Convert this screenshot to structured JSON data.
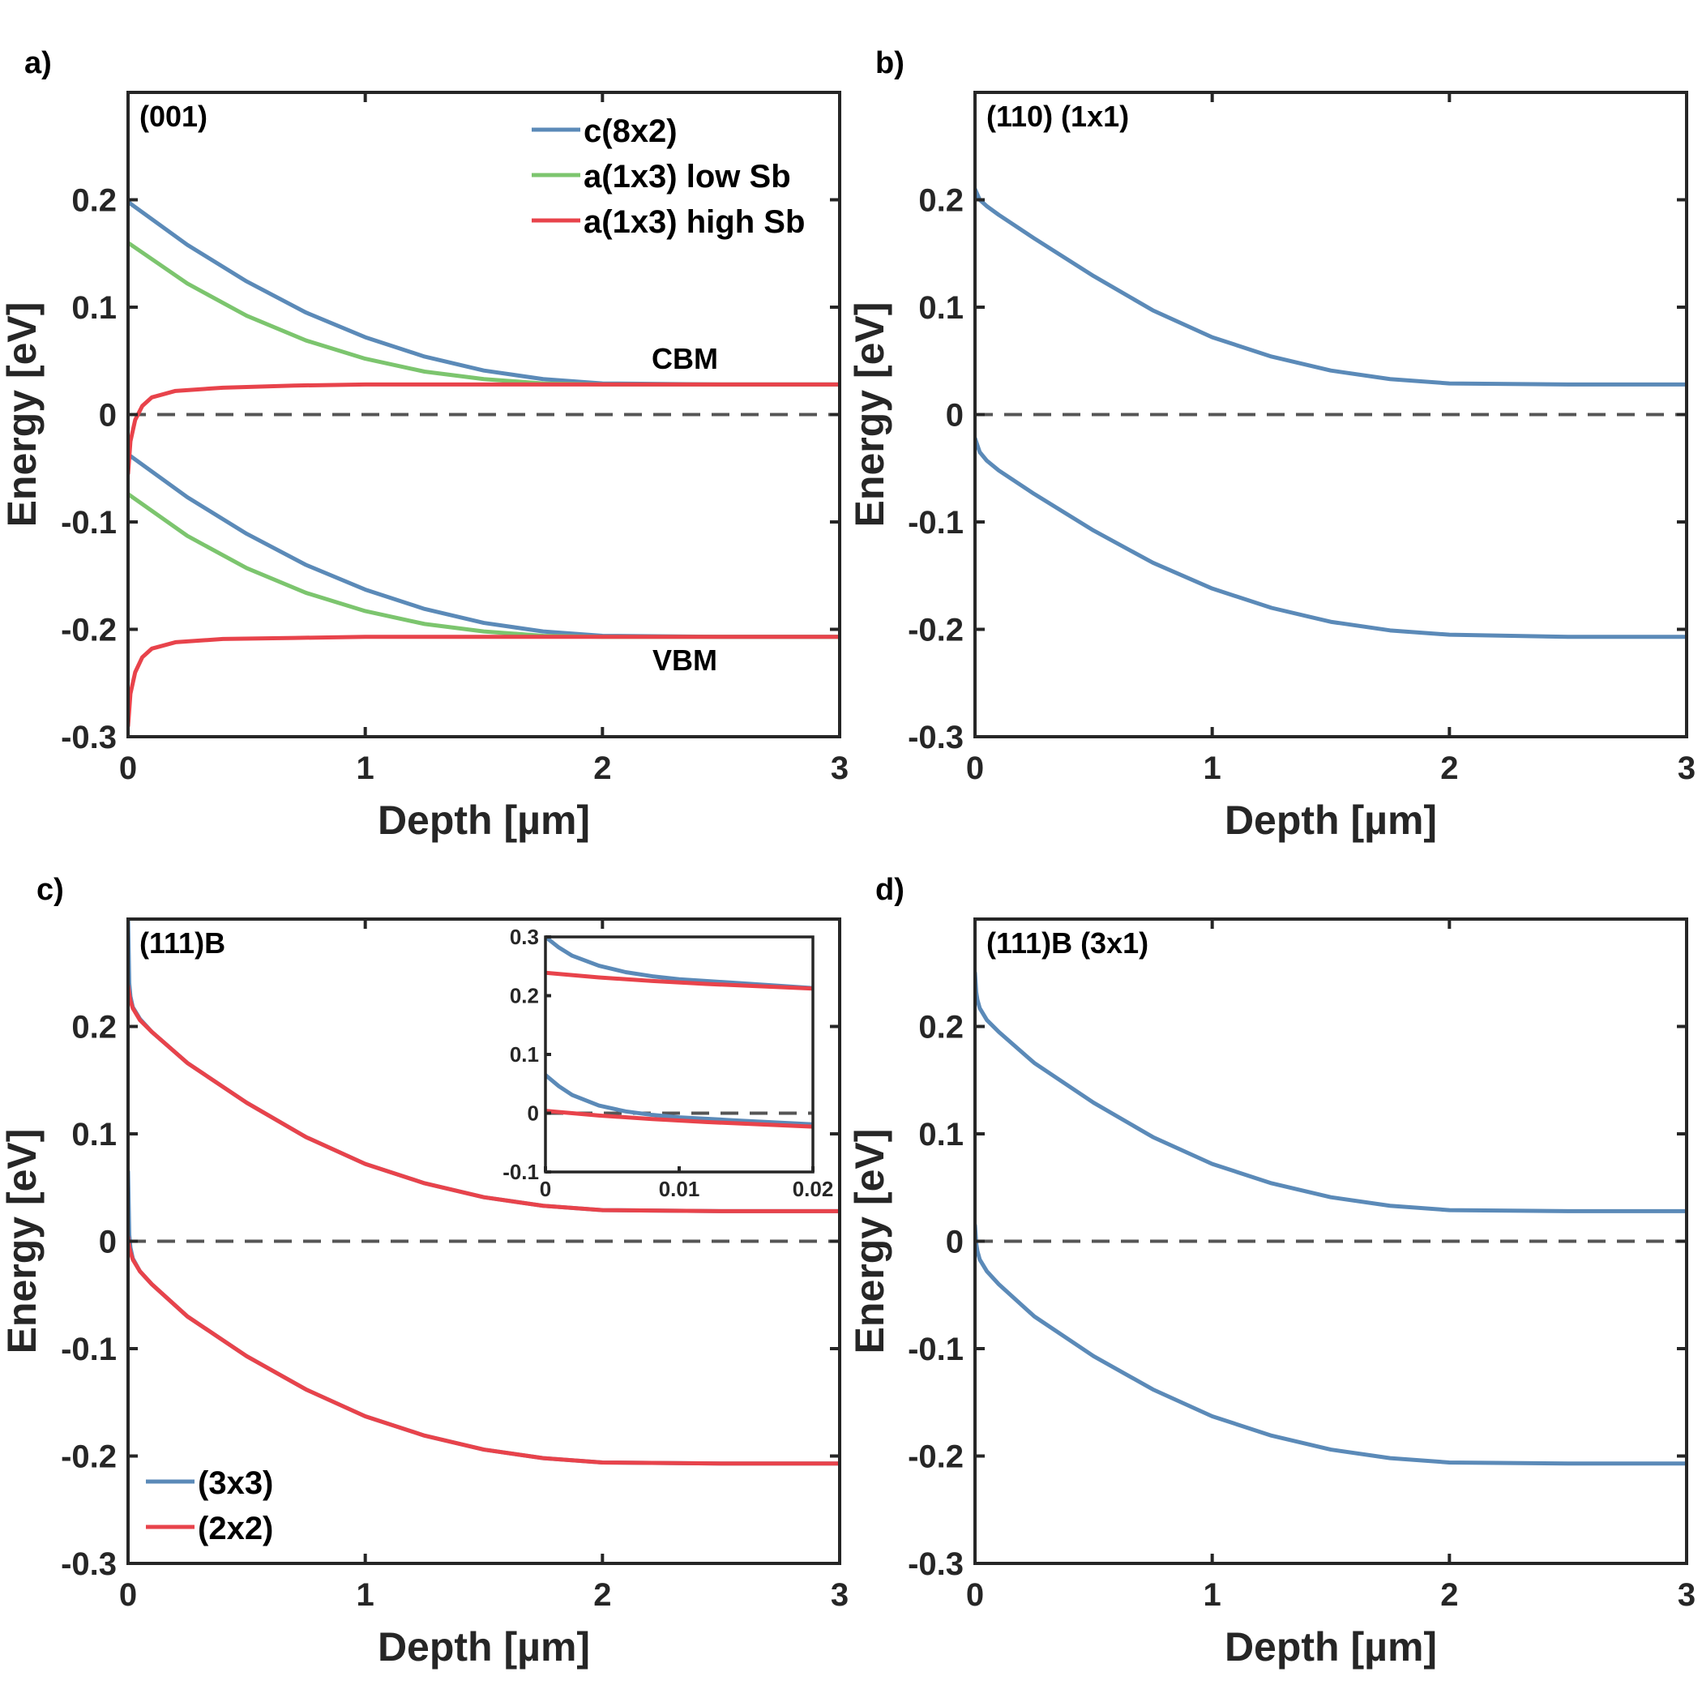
{
  "colors": {
    "blue": "#5b8ab8",
    "green": "#7cc56e",
    "red": "#e8434b",
    "axis": "#262626",
    "dashed": "#555555"
  },
  "chart_data": [
    {
      "id": "a",
      "type": "line",
      "panel_label": "a)",
      "title": "(001)",
      "xlabel": "Depth [µm]",
      "ylabel": "Energy [eV]",
      "xlim": [
        0,
        3
      ],
      "ylim": [
        -0.3,
        0.3
      ],
      "xticks": [
        0,
        1,
        2,
        3
      ],
      "yticks": [
        -0.3,
        -0.2,
        -0.1,
        0,
        0.1,
        0.2
      ],
      "reference_line": 0,
      "legend": {
        "placement": "top-right",
        "entries": [
          "c(8x2)",
          "a(1x3) low Sb",
          "a(1x3) high Sb"
        ]
      },
      "annotations": [
        "CBM",
        "VBM"
      ],
      "series": [
        {
          "name": "c(8x2)",
          "color": "blue",
          "band": "CBM",
          "x": [
            0,
            0.25,
            0.5,
            0.75,
            1.0,
            1.25,
            1.5,
            1.75,
            2.0,
            2.5,
            3.0
          ],
          "y": [
            0.198,
            0.158,
            0.124,
            0.095,
            0.072,
            0.054,
            0.041,
            0.033,
            0.029,
            0.028,
            0.028
          ]
        },
        {
          "name": "c(8x2)",
          "color": "blue",
          "band": "VBM",
          "x": [
            0,
            0.25,
            0.5,
            0.75,
            1.0,
            1.25,
            1.5,
            1.75,
            2.0,
            2.5,
            3.0
          ],
          "y": [
            -0.037,
            -0.077,
            -0.111,
            -0.14,
            -0.163,
            -0.181,
            -0.194,
            -0.202,
            -0.206,
            -0.207,
            -0.207
          ]
        },
        {
          "name": "a(1x3) low Sb",
          "color": "green",
          "band": "CBM",
          "x": [
            0,
            0.25,
            0.5,
            0.75,
            1.0,
            1.25,
            1.5,
            1.75,
            2.0,
            2.5,
            3.0
          ],
          "y": [
            0.16,
            0.122,
            0.092,
            0.069,
            0.052,
            0.04,
            0.033,
            0.029,
            0.028,
            0.028,
            0.028
          ]
        },
        {
          "name": "a(1x3) low Sb",
          "color": "green",
          "band": "VBM",
          "x": [
            0,
            0.25,
            0.5,
            0.75,
            1.0,
            1.25,
            1.5,
            1.75,
            2.0,
            2.5,
            3.0
          ],
          "y": [
            -0.074,
            -0.113,
            -0.143,
            -0.166,
            -0.183,
            -0.195,
            -0.202,
            -0.206,
            -0.207,
            -0.207,
            -0.207
          ]
        },
        {
          "name": "a(1x3) high Sb",
          "color": "red",
          "band": "CBM",
          "x": [
            0,
            0.01,
            0.03,
            0.06,
            0.1,
            0.2,
            0.4,
            0.7,
            1.0,
            2.0,
            3.0
          ],
          "y": [
            -0.055,
            -0.025,
            -0.005,
            0.008,
            0.016,
            0.022,
            0.025,
            0.027,
            0.028,
            0.028,
            0.028
          ]
        },
        {
          "name": "a(1x3) high Sb",
          "color": "red",
          "band": "VBM",
          "x": [
            0,
            0.01,
            0.03,
            0.06,
            0.1,
            0.2,
            0.4,
            0.7,
            1.0,
            2.0,
            3.0
          ],
          "y": [
            -0.29,
            -0.26,
            -0.24,
            -0.226,
            -0.218,
            -0.212,
            -0.209,
            -0.208,
            -0.207,
            -0.207,
            -0.207
          ]
        }
      ]
    },
    {
      "id": "b",
      "type": "line",
      "panel_label": "b)",
      "title": "(110) (1x1)",
      "xlabel": "Depth [µm]",
      "ylabel": "Energy [eV]",
      "xlim": [
        0,
        3
      ],
      "ylim": [
        -0.3,
        0.3
      ],
      "xticks": [
        0,
        1,
        2,
        3
      ],
      "yticks": [
        -0.3,
        -0.2,
        -0.1,
        0,
        0.1,
        0.2
      ],
      "reference_line": 0,
      "series": [
        {
          "name": "(1x1)",
          "color": "blue",
          "band": "CBM",
          "x": [
            0,
            0.02,
            0.05,
            0.1,
            0.25,
            0.5,
            0.75,
            1.0,
            1.25,
            1.5,
            1.75,
            2.0,
            2.5,
            3.0
          ],
          "y": [
            0.21,
            0.2,
            0.194,
            0.186,
            0.164,
            0.129,
            0.097,
            0.072,
            0.054,
            0.041,
            0.033,
            0.029,
            0.028,
            0.028
          ]
        },
        {
          "name": "(1x1)",
          "color": "blue",
          "band": "VBM",
          "x": [
            0,
            0.02,
            0.05,
            0.1,
            0.25,
            0.5,
            0.75,
            1.0,
            1.25,
            1.5,
            1.75,
            2.0,
            2.5,
            3.0
          ],
          "y": [
            -0.022,
            -0.035,
            -0.043,
            -0.052,
            -0.074,
            -0.108,
            -0.138,
            -0.162,
            -0.18,
            -0.193,
            -0.201,
            -0.205,
            -0.207,
            -0.207
          ]
        }
      ]
    },
    {
      "id": "c",
      "type": "line",
      "panel_label": "c)",
      "title": "(111)B",
      "xlabel": "Depth [µm]",
      "ylabel": "Energy [eV]",
      "xlim": [
        0,
        3
      ],
      "ylim": [
        -0.3,
        0.3
      ],
      "xticks": [
        0,
        1,
        2,
        3
      ],
      "yticks": [
        -0.3,
        -0.2,
        -0.1,
        0,
        0.1,
        0.2
      ],
      "reference_line": 0,
      "legend": {
        "placement": "bottom-left",
        "entries": [
          "(3x3)",
          "(2x2)"
        ]
      },
      "series": [
        {
          "name": "(3x3)",
          "color": "blue",
          "band": "CBM",
          "x": [
            0,
            0.005,
            0.01,
            0.02,
            0.05,
            0.1,
            0.25,
            0.5,
            0.75,
            1.0,
            1.25,
            1.5,
            1.75,
            2.0,
            2.5,
            3.0
          ],
          "y": [
            0.3,
            0.24,
            0.228,
            0.218,
            0.207,
            0.195,
            0.166,
            0.129,
            0.097,
            0.072,
            0.054,
            0.041,
            0.033,
            0.029,
            0.028,
            0.028
          ]
        },
        {
          "name": "(3x3)",
          "color": "blue",
          "band": "VBM",
          "x": [
            0,
            0.005,
            0.01,
            0.02,
            0.05,
            0.1,
            0.25,
            0.5,
            0.75,
            1.0,
            1.25,
            1.5,
            1.75,
            2.0,
            2.5,
            3.0
          ],
          "y": [
            0.065,
            0.006,
            -0.006,
            -0.016,
            -0.028,
            -0.04,
            -0.07,
            -0.107,
            -0.138,
            -0.163,
            -0.181,
            -0.194,
            -0.202,
            -0.206,
            -0.207,
            -0.207
          ]
        },
        {
          "name": "(2x2)",
          "color": "red",
          "band": "CBM",
          "x": [
            0,
            0.005,
            0.01,
            0.02,
            0.05,
            0.1,
            0.25,
            0.5,
            0.75,
            1.0,
            1.25,
            1.5,
            1.75,
            2.0,
            2.5,
            3.0
          ],
          "y": [
            0.238,
            0.23,
            0.224,
            0.217,
            0.206,
            0.195,
            0.166,
            0.129,
            0.097,
            0.072,
            0.054,
            0.041,
            0.033,
            0.029,
            0.028,
            0.028
          ]
        },
        {
          "name": "(2x2)",
          "color": "red",
          "band": "VBM",
          "x": [
            0,
            0.005,
            0.01,
            0.02,
            0.05,
            0.1,
            0.25,
            0.5,
            0.75,
            1.0,
            1.25,
            1.5,
            1.75,
            2.0,
            2.5,
            3.0
          ],
          "y": [
            0.004,
            -0.005,
            -0.01,
            -0.017,
            -0.028,
            -0.04,
            -0.07,
            -0.107,
            -0.138,
            -0.163,
            -0.181,
            -0.194,
            -0.202,
            -0.206,
            -0.207,
            -0.207
          ]
        }
      ],
      "inset": {
        "xlim": [
          0,
          0.02
        ],
        "ylim": [
          -0.1,
          0.3
        ],
        "xticks": [
          0,
          0.01,
          0.02
        ],
        "xtick_labels": [
          "0",
          "0.01",
          "0.02"
        ],
        "yticks": [
          -0.1,
          0,
          0.1,
          0.2,
          0.3
        ],
        "ytick_labels": [
          "-0.1",
          "0",
          "0.1",
          "0.2",
          "0.3"
        ],
        "reference_line": 0,
        "series": [
          {
            "name": "(3x3)",
            "color": "blue",
            "band": "CBM",
            "x": [
              0,
              0.001,
              0.002,
              0.004,
              0.006,
              0.008,
              0.01,
              0.014,
              0.02
            ],
            "y": [
              0.3,
              0.282,
              0.268,
              0.251,
              0.24,
              0.233,
              0.228,
              0.222,
              0.213
            ]
          },
          {
            "name": "(3x3)",
            "color": "blue",
            "band": "VBM",
            "x": [
              0,
              0.001,
              0.002,
              0.004,
              0.006,
              0.008,
              0.01,
              0.014,
              0.02
            ],
            "y": [
              0.065,
              0.046,
              0.031,
              0.013,
              0.003,
              -0.003,
              -0.007,
              -0.012,
              -0.019
            ]
          },
          {
            "name": "(2x2)",
            "color": "red",
            "band": "CBM",
            "x": [
              0,
              0.002,
              0.004,
              0.008,
              0.012,
              0.016,
              0.02
            ],
            "y": [
              0.239,
              0.235,
              0.231,
              0.225,
              0.22,
              0.216,
              0.212
            ]
          },
          {
            "name": "(2x2)",
            "color": "red",
            "band": "VBM",
            "x": [
              0,
              0.002,
              0.004,
              0.008,
              0.012,
              0.016,
              0.02
            ],
            "y": [
              0.004,
              0.0,
              -0.004,
              -0.01,
              -0.015,
              -0.019,
              -0.023
            ]
          }
        ]
      }
    },
    {
      "id": "d",
      "type": "line",
      "panel_label": "d)",
      "title": "(111)B (3x1)",
      "xlabel": "Depth [µm]",
      "ylabel": "Energy [eV]",
      "xlim": [
        0,
        3
      ],
      "ylim": [
        -0.3,
        0.3
      ],
      "xticks": [
        0,
        1,
        2,
        3
      ],
      "yticks": [
        -0.3,
        -0.2,
        -0.1,
        0,
        0.1,
        0.2
      ],
      "reference_line": 0,
      "series": [
        {
          "name": "(3x1)",
          "color": "blue",
          "band": "CBM",
          "x": [
            0,
            0.005,
            0.01,
            0.02,
            0.05,
            0.1,
            0.25,
            0.5,
            0.75,
            1.0,
            1.25,
            1.5,
            1.75,
            2.0,
            2.5,
            3.0
          ],
          "y": [
            0.25,
            0.232,
            0.225,
            0.217,
            0.206,
            0.195,
            0.166,
            0.129,
            0.097,
            0.072,
            0.054,
            0.041,
            0.033,
            0.029,
            0.028,
            0.028
          ]
        },
        {
          "name": "(3x1)",
          "color": "blue",
          "band": "VBM",
          "x": [
            0,
            0.005,
            0.01,
            0.02,
            0.05,
            0.1,
            0.25,
            0.5,
            0.75,
            1.0,
            1.25,
            1.5,
            1.75,
            2.0,
            2.5,
            3.0
          ],
          "y": [
            0.015,
            -0.002,
            -0.009,
            -0.017,
            -0.028,
            -0.04,
            -0.07,
            -0.107,
            -0.138,
            -0.163,
            -0.181,
            -0.194,
            -0.202,
            -0.206,
            -0.207,
            -0.207
          ]
        }
      ]
    }
  ]
}
